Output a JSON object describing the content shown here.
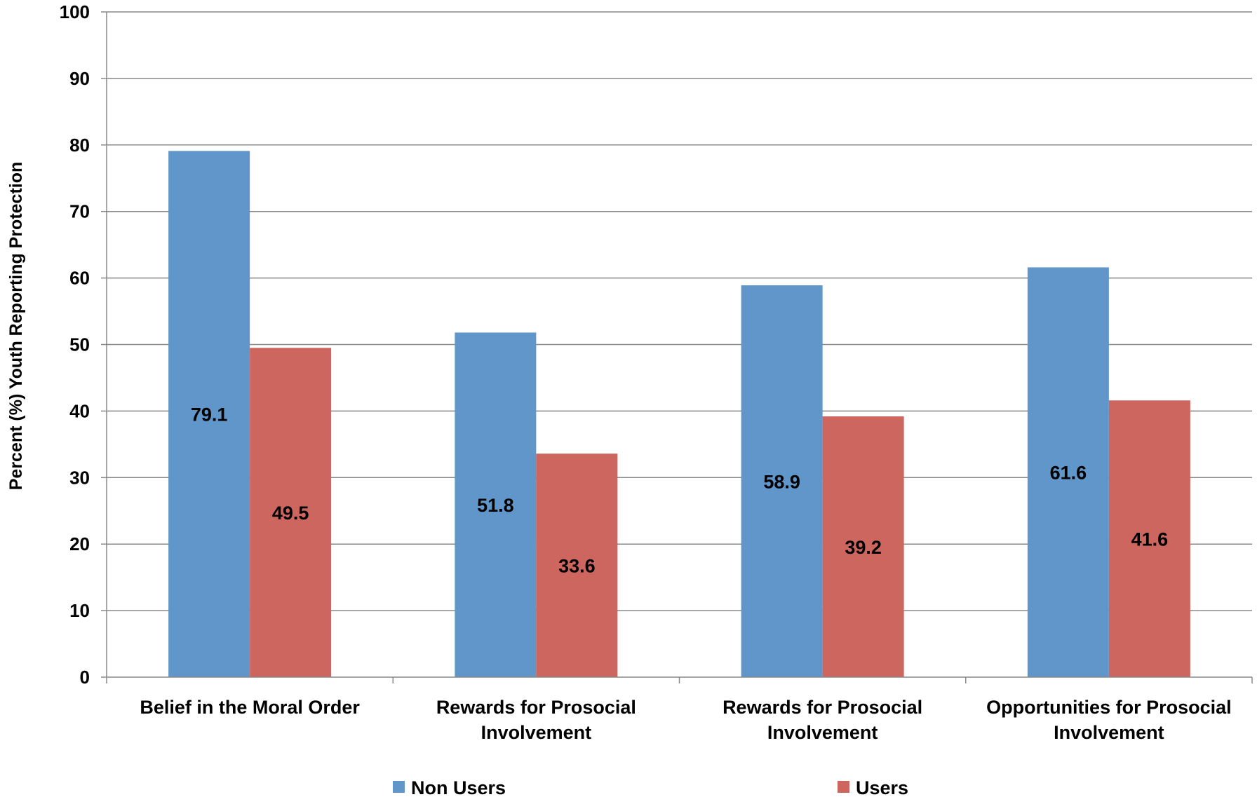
{
  "chart_data": {
    "type": "bar",
    "title": "",
    "xlabel": "",
    "ylabel": "Percent (%) Youth Reporting Protection",
    "ylim": [
      0,
      100
    ],
    "yticks": [
      0,
      10,
      20,
      30,
      40,
      50,
      60,
      70,
      80,
      90,
      100
    ],
    "grid": true,
    "legend_position": "bottom",
    "categories": [
      [
        "Belief in the Moral Order"
      ],
      [
        "Rewards for Prosocial",
        "Involvement"
      ],
      [
        "Rewards for Prosocial",
        "Involvement"
      ],
      [
        "Opportunities for Prosocial",
        "Involvement"
      ]
    ],
    "series": [
      {
        "name": "Non Users",
        "color": "#6096C9",
        "values": [
          79.1,
          51.8,
          58.9,
          61.6
        ],
        "labels": [
          "79.1",
          "51.8",
          "58.9",
          "61.6"
        ]
      },
      {
        "name": "Users",
        "color": "#CD665F",
        "values": [
          49.5,
          33.6,
          39.2,
          41.6
        ],
        "labels": [
          "49.5",
          "33.6",
          "39.2",
          "41.6"
        ]
      }
    ],
    "gridline_color": "#888888",
    "axis_color": "#888888"
  }
}
